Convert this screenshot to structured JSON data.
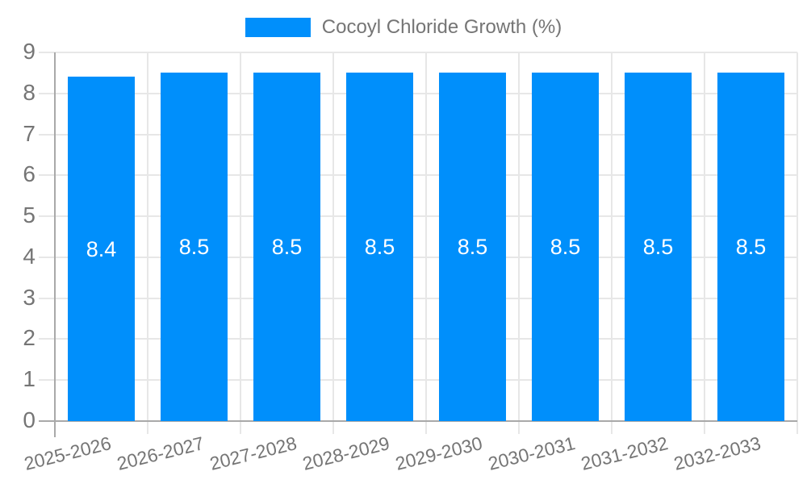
{
  "legend": {
    "label": "Cocoyl Chloride Growth (%)"
  },
  "colors": {
    "bar": "#008FFB",
    "grid": "#e7e7e7",
    "axis": "#a9a9a9",
    "baseline": "#a9a9a9",
    "axis_text": "#757575",
    "bar_label_text": "#ffffff"
  },
  "chart_data": {
    "type": "bar",
    "title": "Cocoyl Chloride Growth (%)",
    "categories": [
      "2025-2026",
      "2026-2027",
      "2027-2028",
      "2028-2029",
      "2029-2030",
      "2030-2031",
      "2031-2032",
      "2032-2033"
    ],
    "series": [
      {
        "name": "Cocoyl Chloride Growth (%)",
        "values": [
          8.4,
          8.5,
          8.5,
          8.5,
          8.5,
          8.5,
          8.5,
          8.5
        ]
      }
    ],
    "bar_value_labels": [
      "8.4",
      "8.5",
      "8.5",
      "8.5",
      "8.5",
      "8.5",
      "8.5",
      "8.5"
    ],
    "xlabel": "",
    "ylabel": "",
    "ylim": [
      0,
      9
    ],
    "y_ticks": [
      0,
      1,
      2,
      3,
      4,
      5,
      6,
      7,
      8,
      9
    ],
    "grid": true,
    "legend_position": "top",
    "x_label_rotation_deg": -14
  }
}
